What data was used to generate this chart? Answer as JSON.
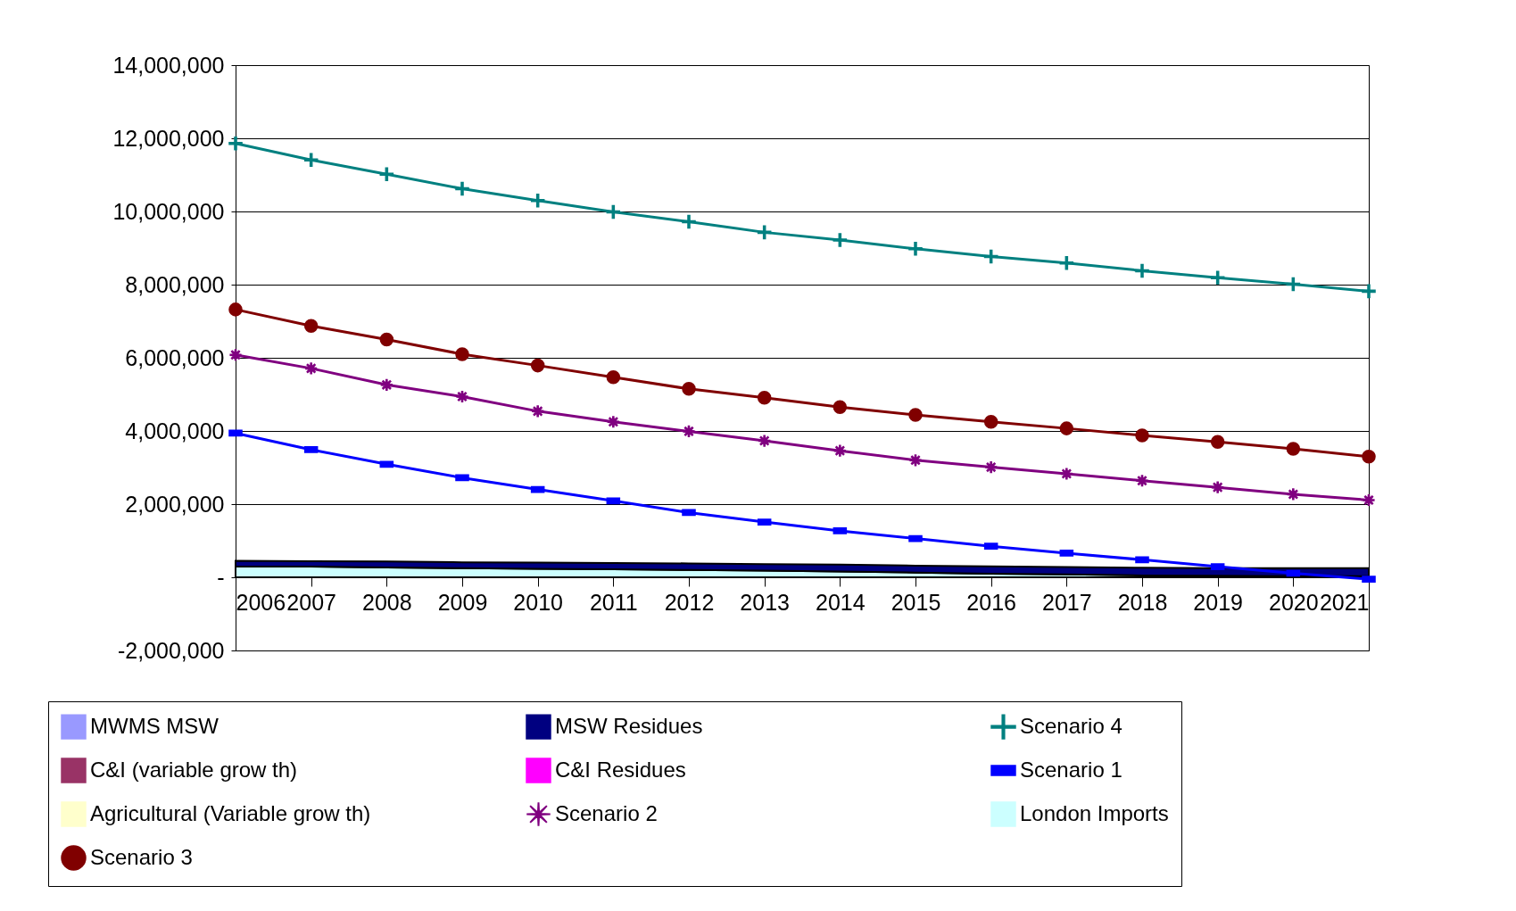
{
  "chart_data": {
    "type": "line",
    "x": [
      2006,
      2007,
      2008,
      2009,
      2010,
      2011,
      2012,
      2013,
      2014,
      2015,
      2016,
      2017,
      2018,
      2019,
      2020,
      2021
    ],
    "xlim": [
      2006,
      2021
    ],
    "xticks": [
      2006,
      2007,
      2008,
      2009,
      2010,
      2011,
      2012,
      2013,
      2014,
      2015,
      2016,
      2017,
      2018,
      2019,
      2020,
      2021
    ],
    "ylim": [
      -2000000,
      14000000
    ],
    "yticks": [
      {
        "value": -2000000,
        "label": "-2,000,000"
      },
      {
        "value": 0,
        "label": "-"
      },
      {
        "value": 2000000,
        "label": "2,000,000"
      },
      {
        "value": 4000000,
        "label": "4,000,000"
      },
      {
        "value": 6000000,
        "label": "6,000,000"
      },
      {
        "value": 8000000,
        "label": "8,000,000"
      },
      {
        "value": 10000000,
        "label": "10,000,000"
      },
      {
        "value": 12000000,
        "label": "12,000,000"
      },
      {
        "value": 14000000,
        "label": "14,000,000"
      }
    ],
    "grid": "y",
    "legend": "bottom",
    "stacked": true,
    "series": [
      {
        "name": "MWMS MSW",
        "type": "area",
        "color": "#9999ff",
        "values": [
          null,
          null,
          null,
          null,
          null,
          null,
          null,
          null,
          null,
          null,
          null,
          null,
          null,
          null,
          null,
          null
        ]
      },
      {
        "name": "C&I (variable grow th)",
        "type": "area",
        "color": "#993366",
        "values": [
          null,
          null,
          null,
          null,
          null,
          null,
          null,
          null,
          null,
          null,
          null,
          null,
          null,
          null,
          null,
          null
        ]
      },
      {
        "name": "Agricultural (Variable grow th)",
        "type": "area",
        "color": "#ffffcc",
        "values": [
          null,
          null,
          null,
          null,
          null,
          null,
          null,
          null,
          null,
          null,
          null,
          null,
          null,
          null,
          null,
          null
        ]
      },
      {
        "name": "London Imports",
        "type": "area",
        "color": "#ccffff",
        "values": [
          300000,
          290000,
          270000,
          250000,
          230000,
          220000,
          200000,
          180000,
          160000,
          130000,
          100000,
          80000,
          50000,
          40000,
          30000,
          30000
        ]
      },
      {
        "name": "MSW Residues",
        "type": "area",
        "color": "#000080",
        "values": [
          150000,
          150000,
          160000,
          160000,
          170000,
          170000,
          180000,
          180000,
          190000,
          190000,
          200000,
          200000,
          210000,
          210000,
          220000,
          220000
        ]
      },
      {
        "name": "C&I Residues",
        "type": "area",
        "color": "#ff00ff",
        "values": [
          null,
          null,
          null,
          null,
          null,
          null,
          null,
          null,
          null,
          null,
          null,
          null,
          null,
          null,
          null,
          null
        ]
      },
      {
        "name": "Scenario 2",
        "marker": "star",
        "color": "#800080",
        "values": [
          6080000,
          5710000,
          5260000,
          4940000,
          4540000,
          4250000,
          3990000,
          3730000,
          3460000,
          3200000,
          3010000,
          2830000,
          2640000,
          2460000,
          2270000,
          2110000
        ]
      },
      {
        "name": "Scenario 3",
        "marker": "circle",
        "color": "#800000",
        "values": [
          7320000,
          6870000,
          6500000,
          6100000,
          5790000,
          5470000,
          5150000,
          4910000,
          4650000,
          4440000,
          4250000,
          4070000,
          3880000,
          3700000,
          3510000,
          3300000
        ]
      },
      {
        "name": "Scenario 4",
        "marker": "cross",
        "color": "#008080",
        "values": [
          11860000,
          11410000,
          11020000,
          10620000,
          10300000,
          9990000,
          9720000,
          9430000,
          9220000,
          8980000,
          8770000,
          8590000,
          8380000,
          8190000,
          8010000,
          7820000
        ]
      },
      {
        "name": "Scenario 1",
        "marker": "square",
        "color": "#0000ff",
        "values": [
          3940000,
          3490000,
          3090000,
          2720000,
          2400000,
          2090000,
          1770000,
          1510000,
          1270000,
          1060000,
          850000,
          660000,
          480000,
          290000,
          110000,
          -50000
        ]
      }
    ]
  }
}
